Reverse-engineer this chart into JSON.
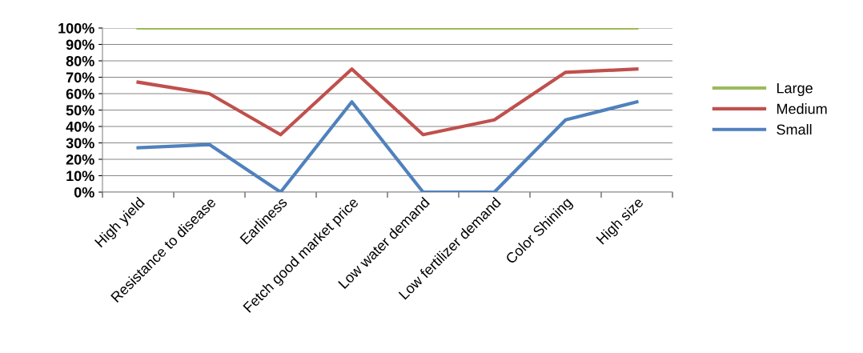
{
  "chart_data": {
    "type": "line",
    "categories": [
      "High yield",
      "Resistance to disease",
      "Earliness",
      "Fetch good market price",
      "Low water demand",
      "Low fertilizer demand",
      "Color Shining",
      "High size"
    ],
    "series": [
      {
        "name": "Large",
        "color": "#9bbb59",
        "values": [
          100,
          100,
          100,
          100,
          100,
          100,
          100,
          100
        ]
      },
      {
        "name": "Medium",
        "color": "#c0504d",
        "values": [
          67,
          60,
          35,
          75,
          35,
          44,
          73,
          75
        ]
      },
      {
        "name": "Small",
        "color": "#4f81bd",
        "values": [
          27,
          29,
          0,
          55,
          0,
          0,
          44,
          55
        ]
      }
    ],
    "ylim": [
      0,
      100
    ],
    "yticks": [
      {
        "value": 0,
        "label": "0%"
      },
      {
        "value": 10,
        "label": "10%"
      },
      {
        "value": 20,
        "label": "20%"
      },
      {
        "value": 30,
        "label": "30%"
      },
      {
        "value": 40,
        "label": "40%"
      },
      {
        "value": 50,
        "label": "50%"
      },
      {
        "value": 60,
        "label": "60%"
      },
      {
        "value": 70,
        "label": "70%"
      },
      {
        "value": 80,
        "label": "80%"
      },
      {
        "value": 90,
        "label": "90%"
      },
      {
        "value": 100,
        "label": "100%"
      }
    ],
    "grid": "y",
    "legend": "right",
    "marker": "none",
    "line_style": "solid"
  }
}
